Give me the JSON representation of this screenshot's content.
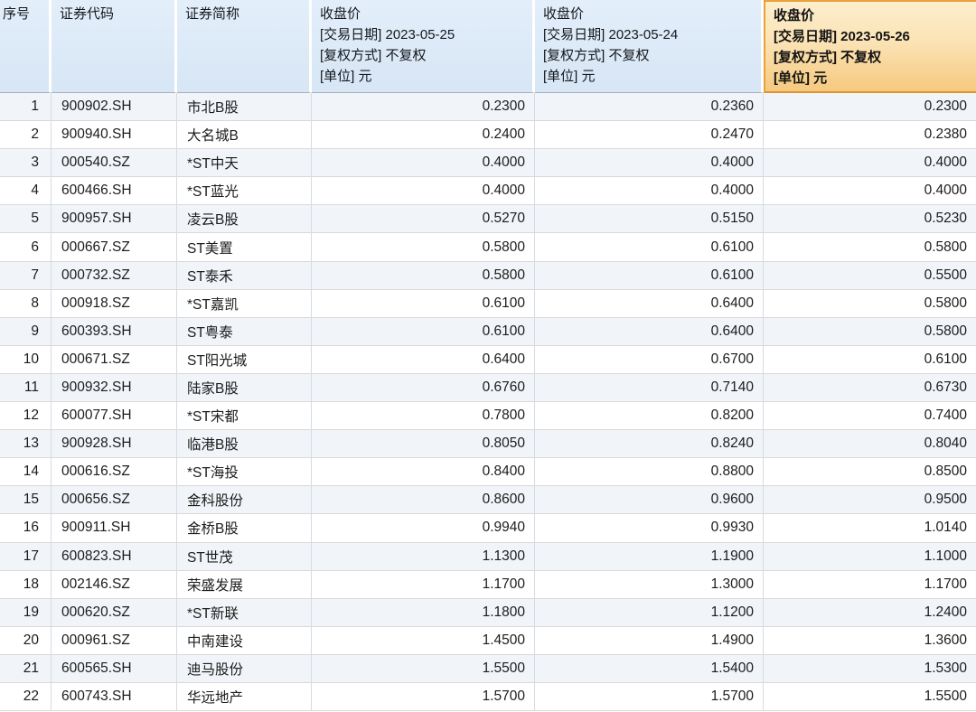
{
  "accent_colors": {
    "header_background": "#dce9f7",
    "highlight_header_top": "#fdeecd",
    "highlight_header_bottom": "#f5c97f",
    "highlight_border": "#e8a23c",
    "odd_row_background": "#f1f5f9",
    "row_border": "#d9d9d9"
  },
  "table": {
    "columns": [
      {
        "key": "seq",
        "align": "right",
        "highlighted": false,
        "label_lines": [
          "序号"
        ]
      },
      {
        "key": "code",
        "align": "left",
        "highlighted": false,
        "label_lines": [
          "证券代码"
        ]
      },
      {
        "key": "name",
        "align": "left",
        "highlighted": false,
        "label_lines": [
          "证券简称"
        ]
      },
      {
        "key": "close_0525",
        "align": "right",
        "highlighted": false,
        "label_lines": [
          "收盘价",
          "[交易日期] 2023-05-25",
          "[复权方式] 不复权",
          "[单位] 元"
        ]
      },
      {
        "key": "close_0524",
        "align": "right",
        "highlighted": false,
        "label_lines": [
          "收盘价",
          "[交易日期] 2023-05-24",
          "[复权方式] 不复权",
          "[单位] 元"
        ]
      },
      {
        "key": "close_0526",
        "align": "right",
        "highlighted": true,
        "label_lines": [
          "收盘价",
          "[交易日期] 2023-05-26",
          "[复权方式] 不复权",
          "[单位] 元"
        ]
      }
    ],
    "rows": [
      [
        "1",
        "900902.SH",
        "市北B股",
        "0.2300",
        "0.2360",
        "0.2300"
      ],
      [
        "2",
        "900940.SH",
        "大名城B",
        "0.2400",
        "0.2470",
        "0.2380"
      ],
      [
        "3",
        "000540.SZ",
        "*ST中天",
        "0.4000",
        "0.4000",
        "0.4000"
      ],
      [
        "4",
        "600466.SH",
        "*ST蓝光",
        "0.4000",
        "0.4000",
        "0.4000"
      ],
      [
        "5",
        "900957.SH",
        "凌云B股",
        "0.5270",
        "0.5150",
        "0.5230"
      ],
      [
        "6",
        "000667.SZ",
        "ST美置",
        "0.5800",
        "0.6100",
        "0.5800"
      ],
      [
        "7",
        "000732.SZ",
        "ST泰禾",
        "0.5800",
        "0.6100",
        "0.5500"
      ],
      [
        "8",
        "000918.SZ",
        "*ST嘉凯",
        "0.6100",
        "0.6400",
        "0.5800"
      ],
      [
        "9",
        "600393.SH",
        "ST粤泰",
        "0.6100",
        "0.6400",
        "0.5800"
      ],
      [
        "10",
        "000671.SZ",
        "ST阳光城",
        "0.6400",
        "0.6700",
        "0.6100"
      ],
      [
        "11",
        "900932.SH",
        "陆家B股",
        "0.6760",
        "0.7140",
        "0.6730"
      ],
      [
        "12",
        "600077.SH",
        "*ST宋都",
        "0.7800",
        "0.8200",
        "0.7400"
      ],
      [
        "13",
        "900928.SH",
        "临港B股",
        "0.8050",
        "0.8240",
        "0.8040"
      ],
      [
        "14",
        "000616.SZ",
        "*ST海投",
        "0.8400",
        "0.8800",
        "0.8500"
      ],
      [
        "15",
        "000656.SZ",
        "金科股份",
        "0.8600",
        "0.9600",
        "0.9500"
      ],
      [
        "16",
        "900911.SH",
        "金桥B股",
        "0.9940",
        "0.9930",
        "1.0140"
      ],
      [
        "17",
        "600823.SH",
        "ST世茂",
        "1.1300",
        "1.1900",
        "1.1000"
      ],
      [
        "18",
        "002146.SZ",
        "荣盛发展",
        "1.1700",
        "1.3000",
        "1.1700"
      ],
      [
        "19",
        "000620.SZ",
        "*ST新联",
        "1.1800",
        "1.1200",
        "1.2400"
      ],
      [
        "20",
        "000961.SZ",
        "中南建设",
        "1.4500",
        "1.4900",
        "1.3600"
      ],
      [
        "21",
        "600565.SH",
        "迪马股份",
        "1.5500",
        "1.5400",
        "1.5300"
      ],
      [
        "22",
        "600743.SH",
        "华远地产",
        "1.5700",
        "1.5700",
        "1.5500"
      ]
    ]
  }
}
